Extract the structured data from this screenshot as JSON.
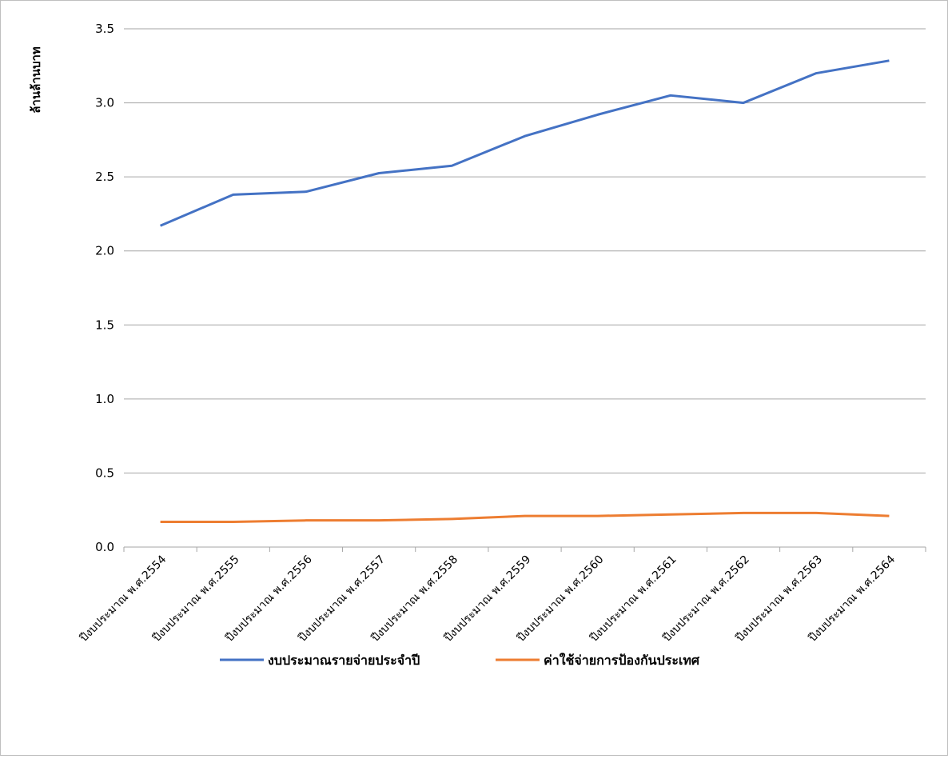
{
  "chart_data": {
    "type": "line",
    "y_label": "ล้านล้านบาท",
    "categories": [
      "ปีงบประมาณ พ.ศ.2554",
      "ปีงบประมาณ พ.ศ.2555",
      "ปีงบประมาณ พ.ศ.2556",
      "ปีงบประมาณ พ.ศ.2557",
      "ปีงบประมาณ พ.ศ.2558",
      "ปีงบประมาณ พ.ศ.2559",
      "ปีงบประมาณ พ.ศ.2560",
      "ปีงบประมาณ พ.ศ.2561",
      "ปีงบประมาณ พ.ศ.2562",
      "ปีงบประมาณ พ.ศ.2563",
      "ปีงบประมาณ พ.ศ.2564"
    ],
    "series": [
      {
        "name": "งบประมาณรายจ่ายประจำปี",
        "color": "#4472c4",
        "values": [
          2.17,
          2.38,
          2.4,
          2.525,
          2.575,
          2.775,
          2.92,
          3.05,
          3.0,
          3.2,
          3.285
        ]
      },
      {
        "name": "ค่าใช้จ่ายการป้องกันประเทศ",
        "color": "#ed7d31",
        "values": [
          0.17,
          0.17,
          0.18,
          0.18,
          0.19,
          0.21,
          0.21,
          0.22,
          0.23,
          0.23,
          0.21
        ]
      }
    ],
    "ylim": [
      0,
      3.5
    ],
    "yticks": [
      {
        "value": 0,
        "label": "0.0"
      },
      0.5,
      {
        "value": 1,
        "label": "1.0"
      },
      1.5,
      {
        "value": 2,
        "label": "2.0"
      },
      2.5,
      {
        "value": 3,
        "label": "3.0"
      },
      3.5
    ],
    "grid": true,
    "legend": "bottom"
  }
}
